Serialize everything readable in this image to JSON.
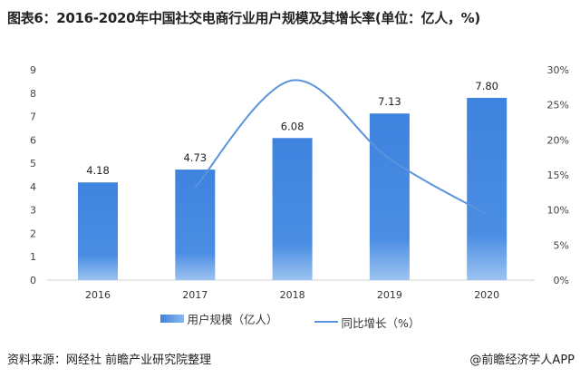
{
  "title": "图表6：2016-2020年中国社交电商行业用户规模及其增长率(单位：亿人，%)",
  "source": "资料来源：网经社 前瞻产业研究院整理",
  "brand": "@前瞻经济学人APP",
  "colors": {
    "bar": "#3e83de",
    "line": "#5b93dc"
  },
  "chart_data": {
    "type": "bar+line",
    "categories": [
      "2016",
      "2017",
      "2018",
      "2019",
      "2020"
    ],
    "series": [
      {
        "name": "用户规模（亿人）",
        "type": "bar",
        "axis": "left",
        "values": [
          4.18,
          4.73,
          6.08,
          7.13,
          7.8
        ],
        "labels": [
          "4.18",
          "4.73",
          "6.08",
          "7.13",
          "7.80"
        ]
      },
      {
        "name": "同比增长（%）",
        "type": "line",
        "axis": "right",
        "values": [
          null,
          13.2,
          28.5,
          17.3,
          9.4
        ]
      }
    ],
    "y_left": {
      "range": [
        0,
        9
      ],
      "ticks": [
        "0",
        "1",
        "2",
        "3",
        "4",
        "5",
        "6",
        "7",
        "8",
        "9"
      ]
    },
    "y_right": {
      "range": [
        0,
        30
      ],
      "ticks": [
        "0%",
        "5%",
        "10%",
        "15%",
        "20%",
        "25%",
        "30%"
      ]
    },
    "grid": false,
    "legend_position": "bottom"
  }
}
